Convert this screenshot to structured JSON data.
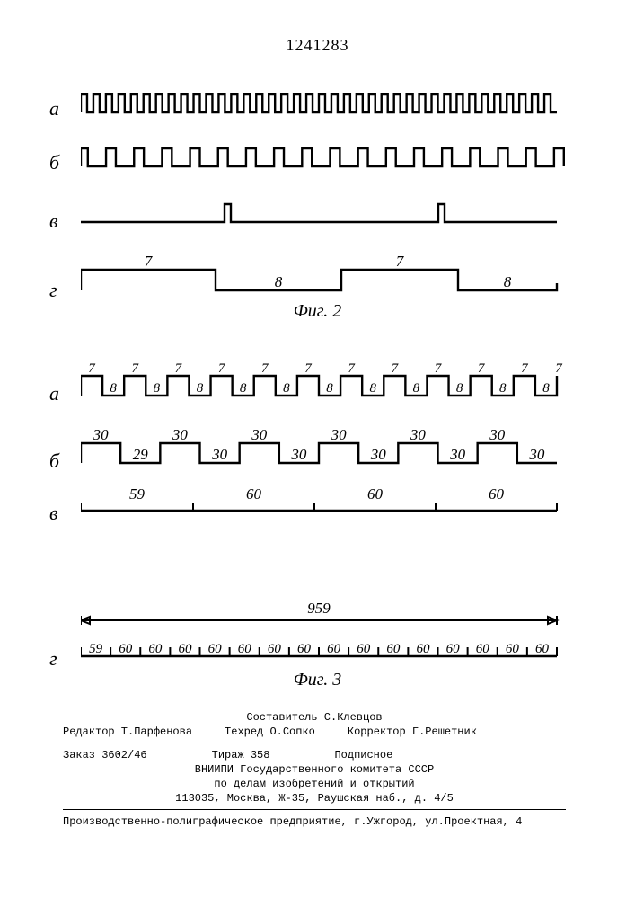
{
  "doc_number": "1241283",
  "fig2_label": "Фиг. 2",
  "fig3_label": "Фиг. 3",
  "row_labels_fig2": {
    "a": "а",
    "b": "б",
    "v": "в",
    "g": "г"
  },
  "row_labels_fig3": {
    "a": "а",
    "b": "б",
    "v": "в",
    "g": "г"
  },
  "fig2_g": {
    "hi": "7",
    "lo": "8"
  },
  "fig3_a": {
    "hi": "7",
    "lo": "8"
  },
  "fig3_b": {
    "first_lo": "29",
    "hi": "30",
    "lo": "30"
  },
  "fig3_v": {
    "first": "59",
    "rest": "60"
  },
  "fig3_g": {
    "total": "959",
    "segments": [
      "59",
      "60",
      "60",
      "60",
      "60",
      "60",
      "60",
      "60",
      "60",
      "60",
      "60",
      "60",
      "60",
      "60",
      "60",
      "60"
    ]
  },
  "footer": {
    "compiler": "Составитель С.Клевцов",
    "editor": "Редактор Т.Парфенова",
    "techred": "Техред О.Сопко",
    "corrector": "Корректор Г.Решетник",
    "order": "Заказ 3602/46",
    "tirazh": "Тираж 358",
    "podpisnoe": "Подписное",
    "org1": "ВНИИПИ Государственного комитета СССР",
    "org2": "по делам изобретений и открытий",
    "addr": "113035, Москва, Ж-35, Раушская наб., д. 4/5",
    "printer": "Производственно-полиграфическое предприятие, г.Ужгород, ул.Проектная, 4"
  }
}
